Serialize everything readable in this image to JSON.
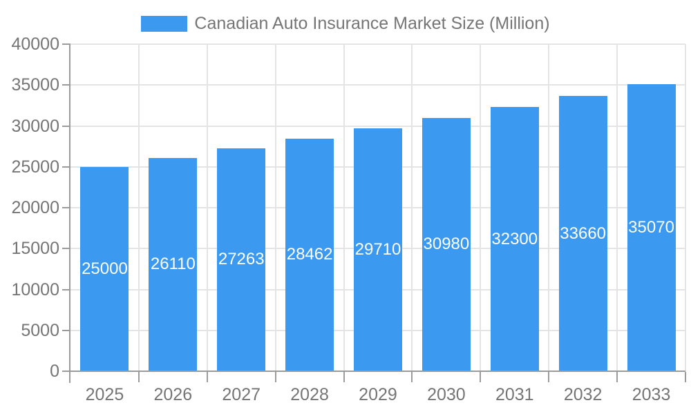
{
  "legend": {
    "label": "Canadian Auto Insurance Market Size (Million)"
  },
  "colors": {
    "bar": "#3B99F0",
    "grid": "#E4E4E4",
    "axis": "#9B9B9B",
    "label": "#757575",
    "data_label": "#FFFFFF",
    "background": "#FFFFFF"
  },
  "chart_data": {
    "type": "bar",
    "title": "Canadian Auto Insurance Market Size (Million)",
    "categories": [
      "2025",
      "2026",
      "2027",
      "2028",
      "2029",
      "2030",
      "2031",
      "2032",
      "2033"
    ],
    "values": [
      25000,
      26110,
      27263,
      28462,
      29710,
      30980,
      32300,
      33660,
      35070
    ],
    "series": [
      {
        "name": "Canadian Auto Insurance Market Size (Million)",
        "values": [
          25000,
          26110,
          27263,
          28462,
          29710,
          30980,
          32300,
          33660,
          35070
        ]
      }
    ],
    "xlabel": "",
    "ylabel": "",
    "ylim": [
      0,
      40000
    ],
    "ytick_step": 5000,
    "yticks": [
      0,
      5000,
      10000,
      15000,
      20000,
      25000,
      30000,
      35000,
      40000
    ],
    "grid": true,
    "legend_position": "top",
    "data_labels_position": "inside-center"
  }
}
